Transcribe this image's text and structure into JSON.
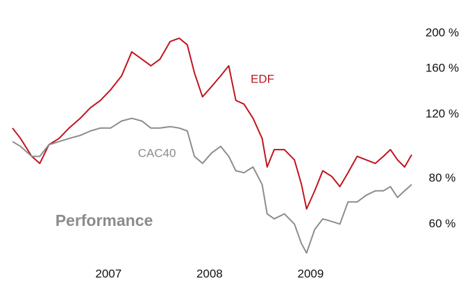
{
  "chart_data": {
    "type": "line",
    "title": "Performance",
    "log_scale_y": true,
    "x": [
      2006.05,
      2006.13,
      2006.24,
      2006.32,
      2006.41,
      2006.51,
      2006.61,
      2006.72,
      2006.82,
      2006.92,
      2007.02,
      2007.13,
      2007.23,
      2007.33,
      2007.42,
      2007.51,
      2007.61,
      2007.7,
      2007.78,
      2007.85,
      2007.93,
      2008.02,
      2008.11,
      2008.19,
      2008.26,
      2008.34,
      2008.43,
      2008.52,
      2008.57,
      2008.64,
      2008.74,
      2008.84,
      2008.91,
      2008.96,
      2009.04,
      2009.12,
      2009.21,
      2009.29,
      2009.37,
      2009.46,
      2009.55,
      2009.64,
      2009.72,
      2009.79,
      2009.86,
      2009.93,
      2010.0
    ],
    "xlim": [
      2006.05,
      2010.0
    ],
    "xticks": [
      2007,
      2008,
      2009
    ],
    "ylim": [
      50,
      210
    ],
    "yticks": [
      {
        "value": 60,
        "label": "60 %"
      },
      {
        "value": 80,
        "label": "80 %"
      },
      {
        "value": 120,
        "label": "120 %"
      },
      {
        "value": 160,
        "label": "160 %"
      },
      {
        "value": 200,
        "label": "200 %"
      }
    ],
    "series": [
      {
        "name": "EDF",
        "color": "#c0141c",
        "values": [
          110,
          103,
          92,
          88,
          99,
          103,
          110,
          117,
          125,
          131,
          140,
          153,
          178,
          170,
          163,
          170,
          190,
          194,
          186,
          156,
          134,
          143,
          153,
          163,
          131,
          128,
          117,
          103,
          86,
          96,
          96,
          90,
          77,
          66,
          74,
          84,
          81,
          76,
          83,
          92,
          90,
          88,
          92,
          96,
          90,
          86,
          93
        ]
      },
      {
        "name": "CAC40",
        "color": "#8c8c8c",
        "values": [
          101,
          98,
          92,
          92,
          99,
          101,
          103,
          105,
          108,
          110,
          110,
          115,
          117,
          115,
          110,
          110,
          111,
          110,
          108,
          92,
          88,
          94,
          98,
          92,
          84,
          83,
          86,
          77,
          64,
          62,
          64,
          60,
          53,
          50,
          58,
          62,
          61,
          60,
          69,
          69,
          72,
          74,
          74,
          76,
          71,
          74,
          77
        ]
      }
    ]
  }
}
